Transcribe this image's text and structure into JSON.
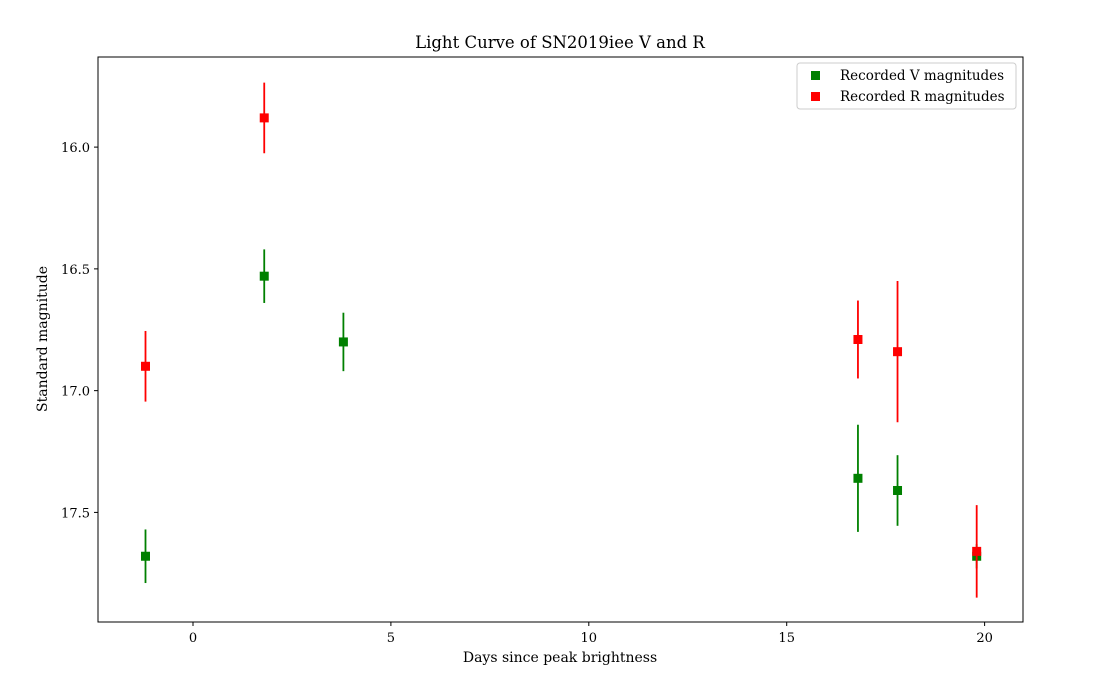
{
  "chart_data": {
    "type": "scatter",
    "title": "Light Curve of SN2019iee V and R",
    "xlabel": "Days since peak brightness",
    "ylabel": "Standard magnitude",
    "xlim": [
      -2.4,
      20.97
    ],
    "ylim": [
      17.95,
      15.63
    ],
    "y_inverted": true,
    "x_ticks": [
      0,
      5,
      10,
      15,
      20
    ],
    "y_ticks": [
      16.0,
      16.5,
      17.0,
      17.5
    ],
    "grid": false,
    "legend_position": "top-right",
    "series": [
      {
        "name": "Recorded V magnitudes",
        "color": "#008000",
        "marker": "square",
        "points": [
          {
            "x": -1.2,
            "y": 17.68,
            "err": 0.11
          },
          {
            "x": 1.8,
            "y": 16.53,
            "err": 0.11
          },
          {
            "x": 3.8,
            "y": 16.8,
            "err": 0.12
          },
          {
            "x": 16.8,
            "y": 17.36,
            "err": 0.22
          },
          {
            "x": 17.8,
            "y": 17.41,
            "err": 0.145
          },
          {
            "x": 19.8,
            "y": 17.68,
            "err": 0.05
          }
        ]
      },
      {
        "name": "Recorded R magnitudes",
        "color": "#ff0000",
        "marker": "square",
        "points": [
          {
            "x": -1.2,
            "y": 16.9,
            "err": 0.145
          },
          {
            "x": 1.8,
            "y": 15.88,
            "err": 0.145
          },
          {
            "x": 16.8,
            "y": 16.79,
            "err": 0.16
          },
          {
            "x": 17.8,
            "y": 16.84,
            "err": 0.29
          },
          {
            "x": 19.8,
            "y": 17.66,
            "err": 0.19
          }
        ]
      }
    ]
  }
}
